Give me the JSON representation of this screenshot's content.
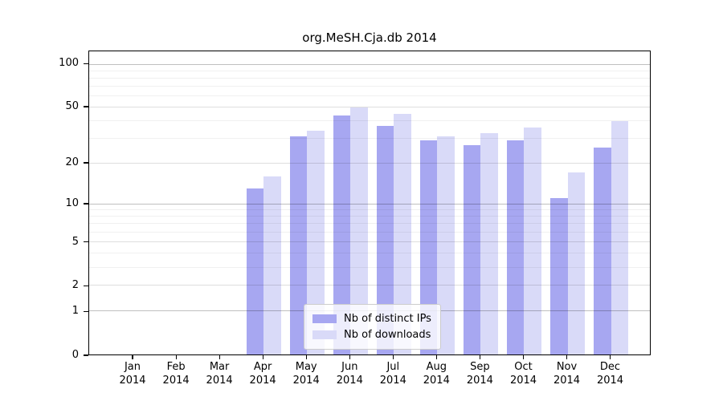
{
  "chart_data": {
    "type": "bar",
    "title": "org.MeSH.Cja.db 2014",
    "categories": [
      "Jan",
      "Feb",
      "Mar",
      "Apr",
      "May",
      "Jun",
      "Jul",
      "Aug",
      "Sep",
      "Oct",
      "Nov",
      "Dec"
    ],
    "x_year_label": "2014",
    "series": [
      {
        "name": "Nb of distinct IPs",
        "color": "#a7a7f1",
        "values": [
          0,
          0,
          0,
          13,
          31,
          44,
          37,
          29,
          27,
          29,
          11,
          26
        ]
      },
      {
        "name": "Nb of downloads",
        "color": "#d9daf8",
        "values": [
          0,
          0,
          0,
          16,
          34,
          50,
          45,
          31,
          33,
          36,
          17,
          40
        ]
      }
    ],
    "xlabel": "",
    "ylabel": "",
    "y_axis": {
      "scale": "log1p",
      "major_ticks": [
        0,
        1,
        2,
        5,
        10,
        20,
        50,
        100
      ],
      "decade_gridlines": [
        1,
        10,
        100
      ],
      "minor_gridlines": [
        3,
        4,
        6,
        7,
        8,
        9,
        30,
        40,
        60,
        70,
        80,
        90
      ],
      "top_value": 123
    },
    "legend_position": "lower-center",
    "grid": true
  },
  "colors": {
    "bar_distinct_ips": "#a7a7f1",
    "bar_downloads": "#d9daf8",
    "axis": "#000000",
    "grid_major": "rgba(0,0,0,0.25)",
    "grid_labeled": "rgba(0,0,0,0.13)",
    "grid_minor": "rgba(0,0,0,0.06)",
    "legend_border": "#cccccc",
    "background": "#ffffff"
  }
}
